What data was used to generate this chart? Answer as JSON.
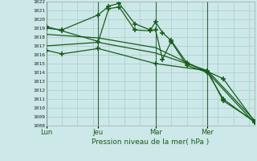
{
  "title": "",
  "xlabel": "Pression niveau de la mer( hPa )",
  "bg_color": "#cce8e8",
  "plot_bg_color": "#cce8e8",
  "grid_color": "#aacccc",
  "grid_color2": "#88aaaa",
  "line_color": "#1a5c1a",
  "vline_color": "#336644",
  "ylim": [
    1008,
    1022
  ],
  "yticks": [
    1008,
    1009,
    1010,
    1011,
    1012,
    1013,
    1014,
    1015,
    1016,
    1017,
    1018,
    1019,
    1020,
    1021,
    1022
  ],
  "xtick_labels": [
    "Lun",
    "Jeu",
    "Mar",
    "Mer"
  ],
  "xtick_positions": [
    0,
    30,
    63,
    93
  ],
  "xlim": [
    0,
    120
  ],
  "series": [
    {
      "x": [
        0,
        9,
        30,
        36,
        42,
        51,
        60,
        63,
        67,
        72,
        81,
        93,
        102,
        120
      ],
      "y": [
        1019.0,
        1018.8,
        1020.5,
        1021.5,
        1021.8,
        1019.5,
        1018.8,
        1019.7,
        1018.5,
        1017.6,
        1015.1,
        1014.1,
        1013.3,
        1008.5
      ],
      "marker": "+"
    },
    {
      "x": [
        0,
        9,
        30,
        36,
        42,
        51,
        60,
        63,
        67,
        72,
        81,
        93,
        102,
        120
      ],
      "y": [
        1019.2,
        1018.7,
        1017.5,
        1021.2,
        1021.4,
        1018.8,
        1018.7,
        1018.8,
        1015.5,
        1017.5,
        1014.8,
        1014.0,
        1011.0,
        1008.4
      ],
      "marker": "+"
    },
    {
      "x": [
        0,
        30,
        63,
        93,
        120
      ],
      "y": [
        1018.3,
        1017.9,
        1016.8,
        1014.0,
        1008.3
      ],
      "marker": null
    },
    {
      "x": [
        0,
        30,
        63,
        93,
        120
      ],
      "y": [
        1017.0,
        1017.4,
        1016.2,
        1014.2,
        1008.6
      ],
      "marker": null
    },
    {
      "x": [
        0,
        9,
        30,
        63,
        93,
        102,
        120
      ],
      "y": [
        1016.5,
        1016.1,
        1016.7,
        1015.0,
        1014.2,
        1010.8,
        1008.5
      ],
      "marker": "+"
    }
  ]
}
